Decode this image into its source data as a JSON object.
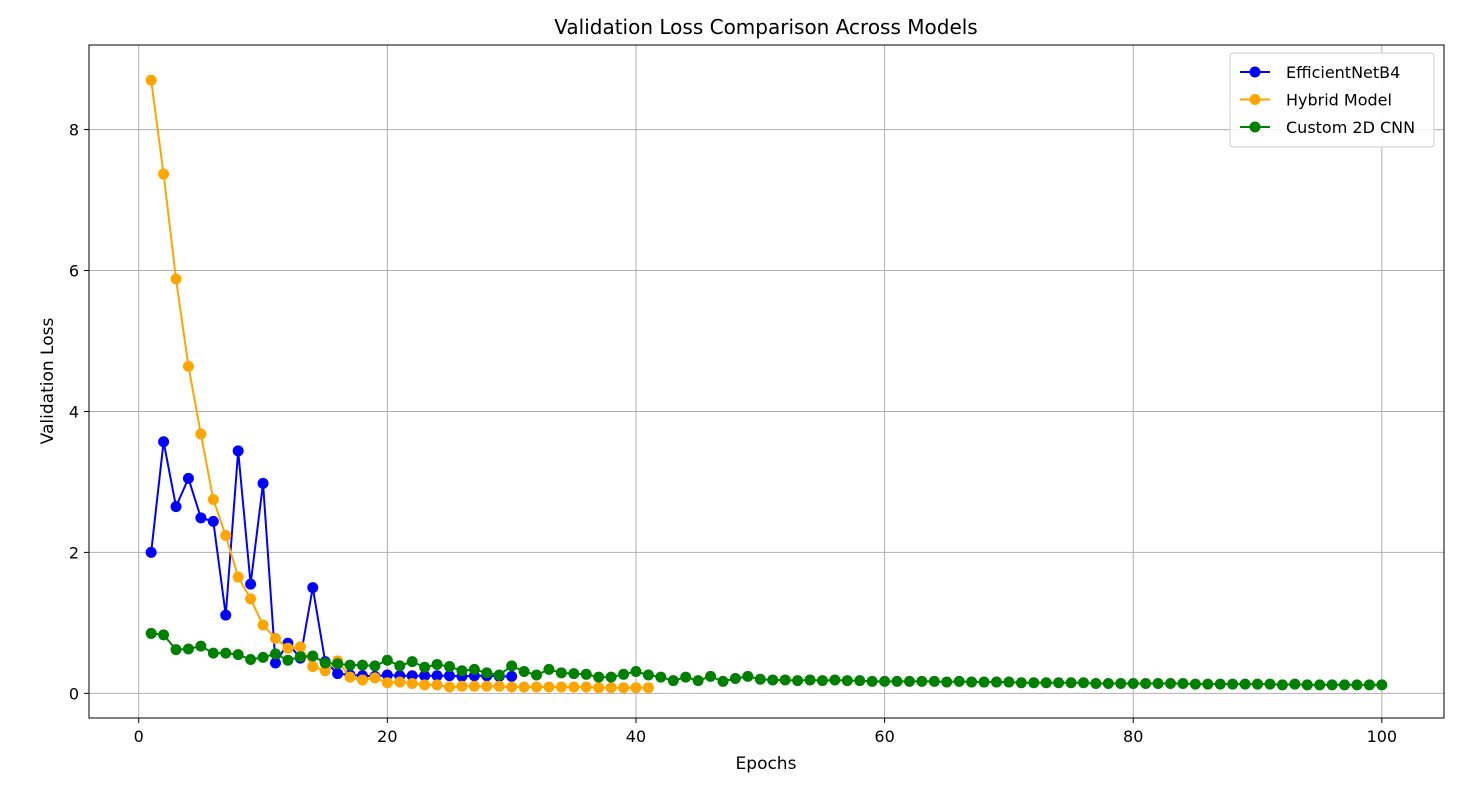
{
  "chart_data": {
    "type": "line",
    "title": "Validation Loss Comparison Across Models",
    "xlabel": "Epochs",
    "ylabel": "Validation Loss",
    "xlim": [
      -4,
      105
    ],
    "ylim": [
      -0.35,
      9.2
    ],
    "xticks": [
      0,
      20,
      40,
      60,
      80,
      100
    ],
    "yticks": [
      0,
      2,
      4,
      6,
      8
    ],
    "grid": true,
    "legend_position": "top-right",
    "series": [
      {
        "name": "EfficientNetB4",
        "color": "#0000ff",
        "x": [
          1,
          2,
          3,
          4,
          5,
          6,
          7,
          8,
          9,
          10,
          11,
          12,
          13,
          14,
          15,
          16,
          17,
          18,
          19,
          20,
          21,
          22,
          23,
          24,
          25,
          26,
          27,
          28,
          29,
          30
        ],
        "values": [
          2.0,
          3.57,
          2.65,
          3.05,
          2.49,
          2.44,
          1.11,
          3.44,
          1.55,
          2.98,
          0.43,
          0.71,
          0.5,
          1.5,
          0.45,
          0.28,
          0.26,
          0.25,
          0.24,
          0.26,
          0.25,
          0.25,
          0.25,
          0.25,
          0.25,
          0.24,
          0.25,
          0.25,
          0.24,
          0.24
        ]
      },
      {
        "name": "Hybrid Model",
        "color": "#ffa500",
        "x": [
          1,
          2,
          3,
          4,
          5,
          6,
          7,
          8,
          9,
          10,
          11,
          12,
          13,
          14,
          15,
          16,
          17,
          18,
          19,
          20,
          21,
          22,
          23,
          24,
          25,
          26,
          27,
          28,
          29,
          30,
          31,
          32,
          33,
          34,
          35,
          36,
          37,
          38,
          39,
          40,
          41
        ],
        "values": [
          8.7,
          7.37,
          5.88,
          4.64,
          3.68,
          2.75,
          2.24,
          1.65,
          1.34,
          0.97,
          0.78,
          0.64,
          0.66,
          0.38,
          0.32,
          0.46,
          0.23,
          0.19,
          0.22,
          0.15,
          0.16,
          0.14,
          0.12,
          0.12,
          0.09,
          0.1,
          0.1,
          0.1,
          0.1,
          0.09,
          0.09,
          0.09,
          0.09,
          0.09,
          0.09,
          0.09,
          0.08,
          0.08,
          0.08,
          0.08,
          0.08
        ]
      },
      {
        "name": "Custom 2D CNN",
        "color": "#008000",
        "x": [
          1,
          2,
          3,
          4,
          5,
          6,
          7,
          8,
          9,
          10,
          11,
          12,
          13,
          14,
          15,
          16,
          17,
          18,
          19,
          20,
          21,
          22,
          23,
          24,
          25,
          26,
          27,
          28,
          29,
          30,
          31,
          32,
          33,
          34,
          35,
          36,
          37,
          38,
          39,
          40,
          41,
          42,
          43,
          44,
          45,
          46,
          47,
          48,
          49,
          50,
          51,
          52,
          53,
          54,
          55,
          56,
          57,
          58,
          59,
          60,
          61,
          62,
          63,
          64,
          65,
          66,
          67,
          68,
          69,
          70,
          71,
          72,
          73,
          74,
          75,
          76,
          77,
          78,
          79,
          80,
          81,
          82,
          83,
          84,
          85,
          86,
          87,
          88,
          89,
          90,
          91,
          92,
          93,
          94,
          95,
          96,
          97,
          98,
          99,
          100
        ],
        "values": [
          0.85,
          0.83,
          0.62,
          0.63,
          0.67,
          0.57,
          0.57,
          0.55,
          0.48,
          0.51,
          0.56,
          0.47,
          0.52,
          0.53,
          0.43,
          0.42,
          0.4,
          0.4,
          0.39,
          0.47,
          0.39,
          0.45,
          0.37,
          0.41,
          0.38,
          0.32,
          0.34,
          0.29,
          0.26,
          0.39,
          0.31,
          0.26,
          0.34,
          0.29,
          0.28,
          0.27,
          0.23,
          0.23,
          0.27,
          0.31,
          0.26,
          0.23,
          0.18,
          0.23,
          0.18,
          0.24,
          0.17,
          0.21,
          0.24,
          0.2,
          0.19,
          0.19,
          0.18,
          0.19,
          0.18,
          0.19,
          0.18,
          0.18,
          0.17,
          0.17,
          0.17,
          0.17,
          0.17,
          0.17,
          0.16,
          0.17,
          0.16,
          0.16,
          0.16,
          0.16,
          0.15,
          0.15,
          0.15,
          0.15,
          0.15,
          0.15,
          0.14,
          0.14,
          0.14,
          0.14,
          0.14,
          0.14,
          0.14,
          0.14,
          0.13,
          0.13,
          0.13,
          0.13,
          0.13,
          0.13,
          0.13,
          0.12,
          0.13,
          0.12,
          0.12,
          0.12,
          0.12,
          0.12,
          0.12,
          0.12
        ]
      }
    ]
  }
}
